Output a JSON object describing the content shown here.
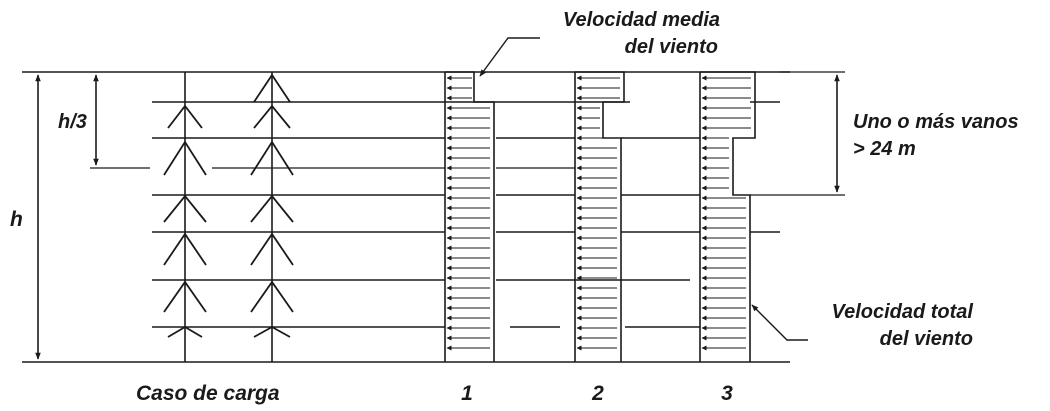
{
  "labels": {
    "mean_wind_line1": "Velocidad media",
    "mean_wind_line2": "del viento",
    "span_line1": "Uno o más vanos",
    "span_line2": "> 24 m",
    "total_wind_line1": "Velocidad total",
    "total_wind_line2": "del viento",
    "height": "h",
    "third_height": "h/3",
    "load_case": "Caso de carga",
    "case_1": "1",
    "case_2": "2",
    "case_3": "3"
  },
  "colors": {
    "ink": "#1a1a1a",
    "background": "#ffffff"
  }
}
